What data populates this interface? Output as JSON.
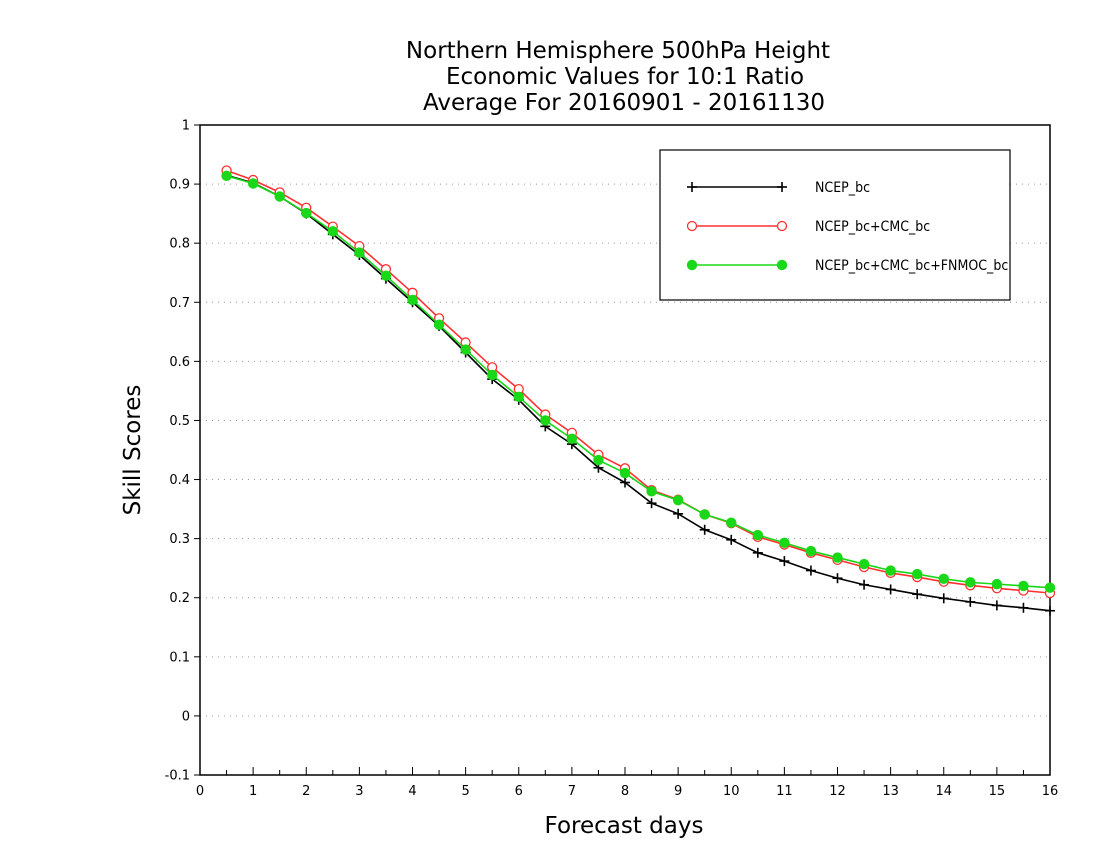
{
  "chart_data": {
    "type": "line",
    "title": [
      "Northern Hemisphere 500hPa Height",
      "Economic Values for 10:1 Ratio",
      "Average For 20160901 - 20161130"
    ],
    "xlabel": "Forecast days",
    "ylabel": "Skill Scores",
    "xlim": [
      0,
      16
    ],
    "ylim": [
      -0.1,
      1
    ],
    "xticks": [
      0,
      1,
      2,
      3,
      4,
      5,
      6,
      7,
      8,
      9,
      10,
      11,
      12,
      13,
      14,
      15,
      16
    ],
    "xtick_labels": [
      "0",
      "1",
      "2",
      "3",
      "4",
      "5",
      "6",
      "7",
      "8",
      "9",
      "10",
      "11",
      "12",
      "13",
      "14",
      "15",
      "16"
    ],
    "yticks": [
      -0.1,
      0,
      0.1,
      0.2,
      0.3,
      0.4,
      0.5,
      0.6,
      0.7,
      0.8,
      0.9,
      1
    ],
    "ytick_labels": [
      "-0.1",
      "0",
      "0.1",
      "0.2",
      "0.3",
      "0.4",
      "0.5",
      "0.6",
      "0.7",
      "0.8",
      "0.9",
      "1"
    ],
    "grid": "horizontal dotted",
    "legend_position": "top-right",
    "x": [
      0.5,
      1,
      1.5,
      2,
      2.5,
      3,
      3.5,
      4,
      4.5,
      5,
      5.5,
      6,
      6.5,
      7,
      7.5,
      8,
      8.5,
      9,
      9.5,
      10,
      10.5,
      11,
      11.5,
      12,
      12.5,
      13,
      13.5,
      14,
      14.5,
      15,
      15.5,
      16
    ],
    "series": [
      {
        "name": "NCEP_bc",
        "color": "#000000",
        "marker": "plus",
        "values": [
          0.915,
          0.902,
          0.879,
          0.85,
          0.815,
          0.78,
          0.74,
          0.7,
          0.66,
          0.615,
          0.57,
          0.535,
          0.49,
          0.46,
          0.42,
          0.395,
          0.36,
          0.342,
          0.315,
          0.298,
          0.276,
          0.262,
          0.246,
          0.233,
          0.222,
          0.214,
          0.206,
          0.199,
          0.193,
          0.187,
          0.183,
          0.178
        ]
      },
      {
        "name": "NCEP_bc+CMC_bc",
        "color": "#ff3030",
        "marker": "open-circle",
        "values": [
          0.923,
          0.907,
          0.886,
          0.86,
          0.828,
          0.795,
          0.756,
          0.716,
          0.673,
          0.632,
          0.59,
          0.553,
          0.51,
          0.479,
          0.442,
          0.419,
          0.382,
          0.366,
          0.341,
          0.326,
          0.303,
          0.29,
          0.276,
          0.264,
          0.252,
          0.242,
          0.235,
          0.227,
          0.221,
          0.216,
          0.212,
          0.208
        ]
      },
      {
        "name": "NCEP_bc+CMC_bc+FNMOC_bc",
        "color": "#18d818",
        "marker": "filled-circle",
        "values": [
          0.914,
          0.901,
          0.879,
          0.851,
          0.82,
          0.784,
          0.745,
          0.704,
          0.662,
          0.62,
          0.577,
          0.54,
          0.5,
          0.469,
          0.433,
          0.411,
          0.38,
          0.365,
          0.341,
          0.327,
          0.306,
          0.293,
          0.279,
          0.268,
          0.257,
          0.246,
          0.24,
          0.232,
          0.226,
          0.223,
          0.22,
          0.217
        ]
      }
    ]
  }
}
